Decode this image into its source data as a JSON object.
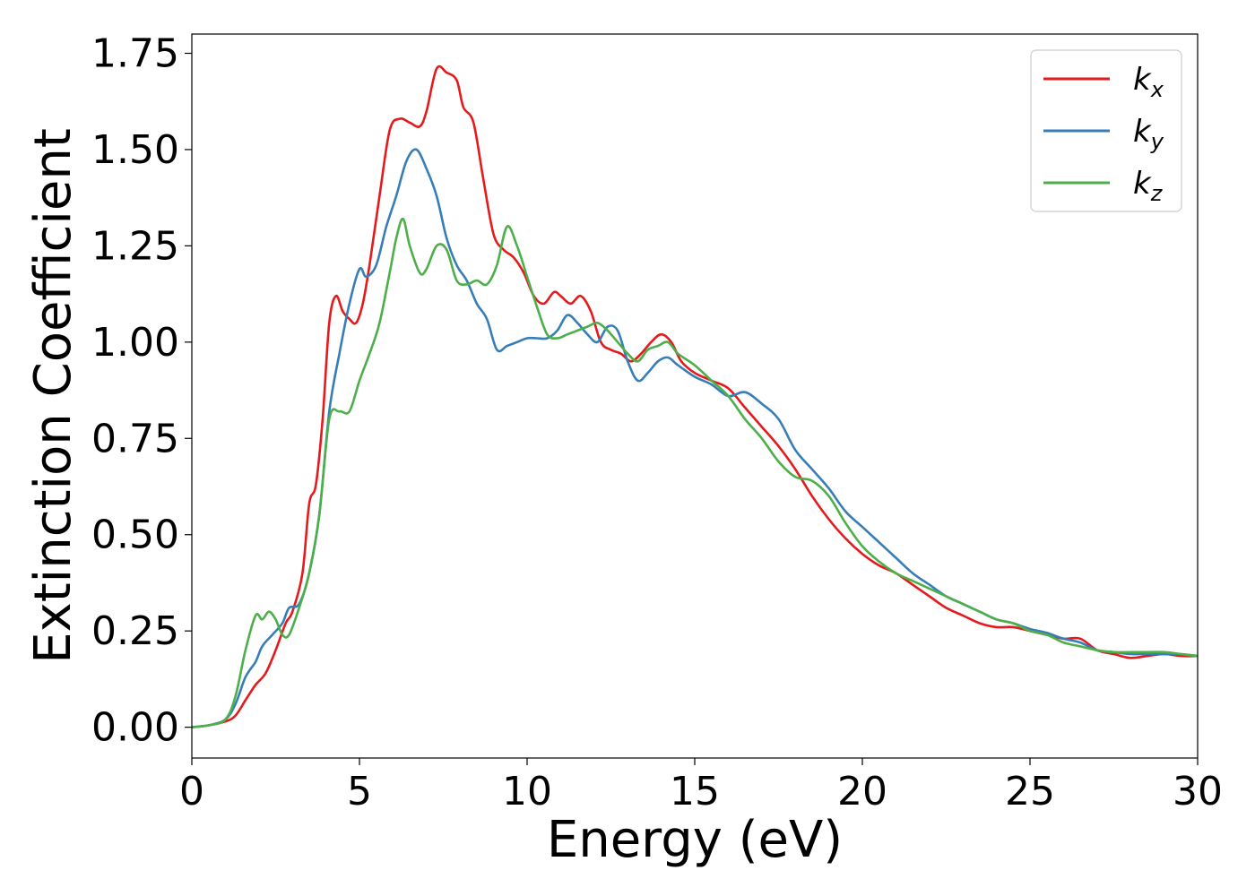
{
  "chart_data": {
    "type": "line",
    "xlabel": "Energy (eV)",
    "ylabel": "Extinction Coefficient",
    "xlim": [
      0,
      30
    ],
    "ylim": [
      -0.08,
      1.8
    ],
    "xticks": [
      "0",
      "5",
      "10",
      "15",
      "20",
      "25",
      "30"
    ],
    "yticks": [
      "0.00",
      "0.25",
      "0.50",
      "0.75",
      "1.00",
      "1.25",
      "1.50",
      "1.75"
    ],
    "grid": false,
    "legend_position": "top-right",
    "series": [
      {
        "name": "k_x",
        "label_main": "k",
        "label_sub": "x",
        "color": "#e41a1c",
        "x": [
          0,
          0.5,
          1.0,
          1.3,
          1.6,
          1.9,
          2.2,
          2.5,
          2.8,
          3.0,
          3.3,
          3.5,
          3.7,
          3.9,
          4.1,
          4.3,
          4.5,
          4.7,
          4.9,
          5.1,
          5.3,
          5.6,
          5.9,
          6.2,
          6.5,
          6.8,
          7.0,
          7.3,
          7.6,
          7.9,
          8.1,
          8.4,
          8.7,
          9.0,
          9.3,
          9.6,
          9.9,
          10.2,
          10.5,
          10.8,
          11.0,
          11.3,
          11.6,
          11.9,
          12.2,
          12.5,
          12.8,
          13.1,
          13.4,
          13.7,
          14.0,
          14.3,
          14.6,
          15.0,
          15.5,
          16.0,
          16.5,
          17.0,
          17.5,
          18.0,
          18.5,
          19.0,
          19.5,
          20.0,
          20.5,
          21.0,
          21.5,
          22.0,
          22.5,
          23.0,
          23.5,
          24.0,
          24.5,
          25.0,
          25.5,
          26.0,
          26.5,
          27.0,
          27.5,
          28.0,
          28.5,
          29.0,
          29.5,
          30.0
        ],
        "values": [
          0.0,
          0.005,
          0.015,
          0.03,
          0.07,
          0.11,
          0.14,
          0.2,
          0.27,
          0.3,
          0.4,
          0.58,
          0.63,
          0.8,
          1.05,
          1.12,
          1.08,
          1.06,
          1.05,
          1.1,
          1.2,
          1.38,
          1.55,
          1.58,
          1.57,
          1.56,
          1.6,
          1.71,
          1.7,
          1.68,
          1.61,
          1.57,
          1.42,
          1.28,
          1.24,
          1.22,
          1.18,
          1.12,
          1.1,
          1.13,
          1.12,
          1.1,
          1.12,
          1.08,
          1.0,
          0.98,
          0.97,
          0.95,
          0.97,
          1.0,
          1.02,
          1.0,
          0.95,
          0.92,
          0.9,
          0.88,
          0.83,
          0.78,
          0.73,
          0.67,
          0.6,
          0.54,
          0.49,
          0.45,
          0.42,
          0.4,
          0.37,
          0.34,
          0.31,
          0.29,
          0.27,
          0.26,
          0.26,
          0.25,
          0.24,
          0.23,
          0.23,
          0.2,
          0.19,
          0.18,
          0.185,
          0.19,
          0.185,
          0.185
        ]
      },
      {
        "name": "k_y",
        "label_main": "k",
        "label_sub": "y",
        "color": "#377eb8",
        "x": [
          0,
          0.5,
          1.0,
          1.3,
          1.6,
          1.9,
          2.1,
          2.4,
          2.7,
          2.9,
          3.2,
          3.5,
          3.8,
          4.1,
          4.4,
          4.7,
          5.0,
          5.2,
          5.5,
          5.8,
          6.1,
          6.4,
          6.7,
          7.0,
          7.3,
          7.6,
          7.9,
          8.2,
          8.5,
          8.8,
          9.1,
          9.4,
          9.7,
          10.0,
          10.3,
          10.6,
          10.9,
          11.2,
          11.5,
          11.8,
          12.1,
          12.4,
          12.7,
          13.0,
          13.3,
          13.6,
          13.9,
          14.2,
          14.5,
          15.0,
          15.5,
          16.0,
          16.5,
          17.0,
          17.5,
          18.0,
          18.5,
          19.0,
          19.5,
          20.0,
          20.5,
          21.0,
          21.5,
          22.0,
          22.5,
          23.0,
          23.5,
          24.0,
          24.5,
          25.0,
          25.5,
          26.0,
          26.5,
          27.0,
          27.5,
          28.0,
          28.5,
          29.0,
          29.5,
          30.0
        ],
        "values": [
          0.0,
          0.005,
          0.02,
          0.06,
          0.13,
          0.17,
          0.21,
          0.24,
          0.27,
          0.31,
          0.32,
          0.4,
          0.55,
          0.82,
          0.97,
          1.1,
          1.19,
          1.17,
          1.2,
          1.3,
          1.38,
          1.47,
          1.5,
          1.45,
          1.38,
          1.27,
          1.2,
          1.16,
          1.1,
          1.06,
          0.98,
          0.99,
          1.0,
          1.01,
          1.01,
          1.01,
          1.03,
          1.07,
          1.05,
          1.02,
          1.0,
          1.04,
          1.03,
          0.95,
          0.9,
          0.92,
          0.95,
          0.96,
          0.94,
          0.91,
          0.89,
          0.86,
          0.87,
          0.84,
          0.8,
          0.72,
          0.67,
          0.62,
          0.56,
          0.52,
          0.48,
          0.44,
          0.4,
          0.37,
          0.34,
          0.32,
          0.3,
          0.28,
          0.27,
          0.255,
          0.245,
          0.23,
          0.22,
          0.2,
          0.195,
          0.19,
          0.19,
          0.19,
          0.19,
          0.185
        ]
      },
      {
        "name": "k_z",
        "label_main": "k",
        "label_sub": "z",
        "color": "#4daf4a",
        "x": [
          0,
          0.5,
          1.0,
          1.3,
          1.6,
          1.9,
          2.1,
          2.3,
          2.5,
          2.7,
          2.9,
          3.2,
          3.5,
          3.8,
          4.1,
          4.4,
          4.7,
          5.0,
          5.3,
          5.6,
          5.9,
          6.1,
          6.3,
          6.5,
          6.8,
          7.0,
          7.3,
          7.6,
          7.9,
          8.2,
          8.5,
          8.8,
          9.1,
          9.4,
          9.7,
          10.0,
          10.3,
          10.6,
          10.9,
          11.2,
          11.5,
          11.8,
          12.1,
          12.4,
          12.7,
          13.0,
          13.3,
          13.6,
          13.9,
          14.2,
          14.5,
          15.0,
          15.5,
          16.0,
          16.5,
          17.0,
          17.5,
          18.0,
          18.5,
          19.0,
          19.5,
          20.0,
          20.5,
          21.0,
          21.5,
          22.0,
          22.5,
          23.0,
          23.5,
          24.0,
          24.5,
          25.0,
          25.5,
          26.0,
          26.5,
          27.0,
          27.5,
          28.0,
          28.5,
          29.0,
          29.5,
          30.0
        ],
        "values": [
          0.0,
          0.005,
          0.02,
          0.08,
          0.2,
          0.29,
          0.28,
          0.3,
          0.28,
          0.24,
          0.24,
          0.31,
          0.4,
          0.55,
          0.8,
          0.82,
          0.82,
          0.9,
          0.97,
          1.05,
          1.18,
          1.27,
          1.32,
          1.25,
          1.18,
          1.19,
          1.25,
          1.24,
          1.16,
          1.15,
          1.16,
          1.15,
          1.2,
          1.3,
          1.25,
          1.17,
          1.09,
          1.02,
          1.01,
          1.02,
          1.03,
          1.04,
          1.05,
          1.03,
          1.0,
          0.97,
          0.95,
          0.98,
          0.99,
          1.0,
          0.97,
          0.94,
          0.9,
          0.86,
          0.8,
          0.75,
          0.69,
          0.65,
          0.64,
          0.6,
          0.53,
          0.47,
          0.43,
          0.4,
          0.38,
          0.36,
          0.34,
          0.32,
          0.3,
          0.28,
          0.27,
          0.25,
          0.24,
          0.22,
          0.21,
          0.2,
          0.195,
          0.195,
          0.195,
          0.195,
          0.19,
          0.185
        ]
      }
    ]
  }
}
